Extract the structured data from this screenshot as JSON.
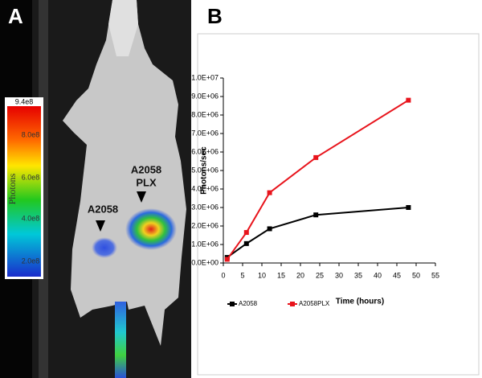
{
  "figure": {
    "panel_a_label": "A",
    "panel_b_label": "B",
    "colorbar": {
      "max": "9.4e8",
      "labels": [
        "8.0e8",
        "6.0e8",
        "4.0e8",
        "2.0e8"
      ],
      "title": "Photons"
    },
    "tumor_labels": {
      "left": "A2058",
      "right_line1": "A2058",
      "right_line2": "PLX"
    }
  },
  "chart_data": {
    "type": "line",
    "x_label": "Time (hours)",
    "y_label": "Photons/sec",
    "x": [
      1,
      6,
      12,
      24,
      48
    ],
    "series": [
      {
        "name": "A2058",
        "color": "#000000",
        "values": [
          300000,
          1050000,
          1850000,
          2600000,
          3000000
        ]
      },
      {
        "name": "A2058PLX",
        "color": "#e8141c",
        "values": [
          200000,
          1650000,
          3800000,
          5700000,
          8800000
        ]
      }
    ],
    "xlim": [
      0,
      55
    ],
    "xticks": [
      0,
      5,
      10,
      15,
      20,
      25,
      30,
      35,
      40,
      45,
      50,
      55
    ],
    "ylim": [
      0,
      10000000
    ],
    "yticks": [
      {
        "value": 0,
        "label": "0.0E+00"
      },
      {
        "value": 1000000,
        "label": "1.0E+06"
      },
      {
        "value": 2000000,
        "label": "2.0E+06"
      },
      {
        "value": 3000000,
        "label": "3.0E+06"
      },
      {
        "value": 4000000,
        "label": "4.0E+06"
      },
      {
        "value": 5000000,
        "label": "5.0E+06"
      },
      {
        "value": 6000000,
        "label": "6.0E+06"
      },
      {
        "value": 7000000,
        "label": "7.0E+06"
      },
      {
        "value": 8000000,
        "label": "8.0E+06"
      },
      {
        "value": 9000000,
        "label": "9.0E+06"
      },
      {
        "value": 10000000,
        "label": "1.0E+07"
      }
    ],
    "grid": false,
    "legend": "bottom-left"
  }
}
